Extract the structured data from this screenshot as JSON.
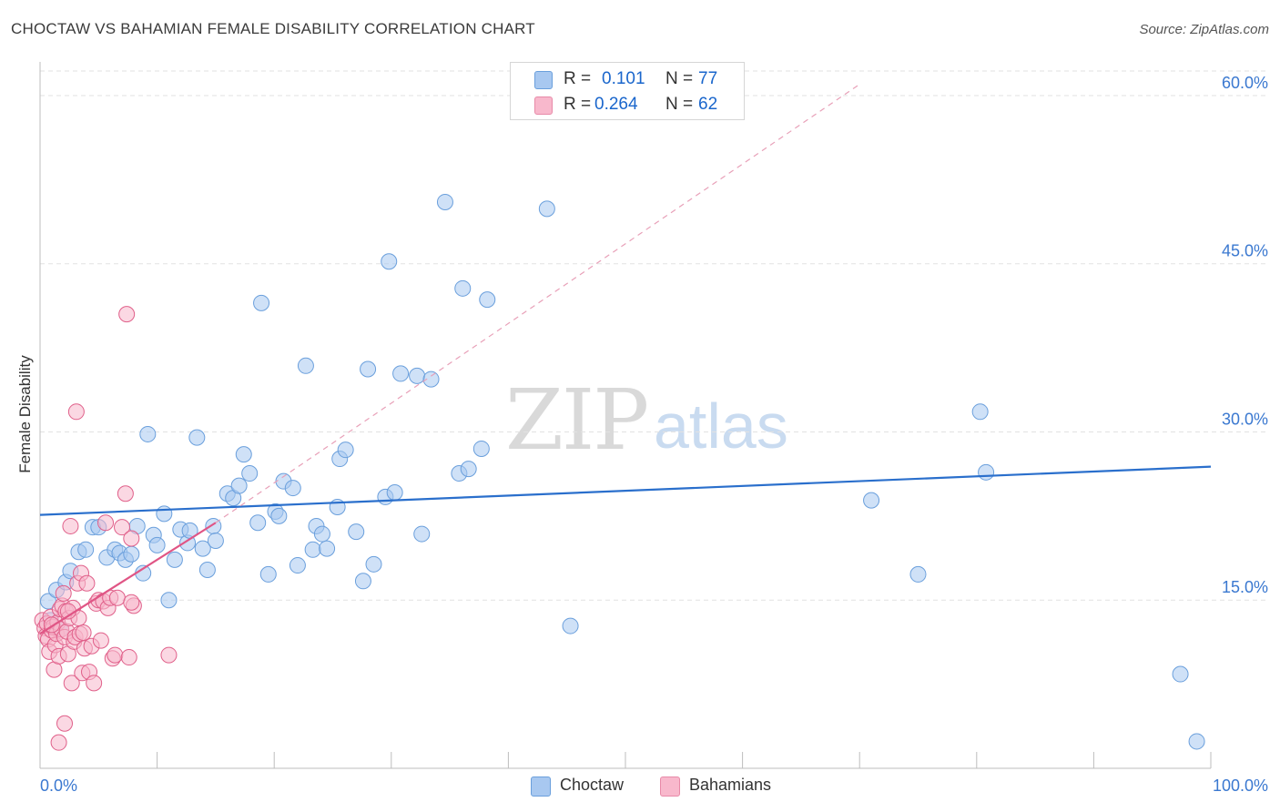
{
  "header": {
    "title": "CHOCTAW VS BAHAMIAN FEMALE DISABILITY CORRELATION CHART",
    "source": "Source: ZipAtlas.com"
  },
  "watermark": {
    "zip": "ZIP",
    "atlas": "atlas"
  },
  "legend": {
    "r_label": "R =",
    "n_label": "N =",
    "series": [
      {
        "name": "Choctaw",
        "r": "0.101",
        "n": "77",
        "fill": "#a8c8f0",
        "stroke": "#6a9fdc"
      },
      {
        "name": "Bahamians",
        "r": "0.264",
        "n": "62",
        "fill": "#f8b8cc",
        "stroke": "#e88aa8"
      }
    ]
  },
  "chart_data": {
    "type": "scatter",
    "title": "CHOCTAW VS BAHAMIAN FEMALE DISABILITY CORRELATION CHART",
    "xlabel": "",
    "ylabel": "Female Disability",
    "xlim": [
      0,
      100
    ],
    "ylim": [
      0,
      63
    ],
    "x_tick_labels": [
      "0.0%",
      "100.0%"
    ],
    "y_ticks": [
      15,
      30,
      45,
      60
    ],
    "y_tick_labels": [
      "15.0%",
      "30.0%",
      "45.0%",
      "60.0%"
    ],
    "grid": true,
    "legend_position": "top-center",
    "series": [
      {
        "name": "Choctaw",
        "color": "#6a9fdc",
        "fill": "#a8c8f0",
        "points": [
          [
            0.7,
            14.9
          ],
          [
            1.4,
            15.9
          ],
          [
            2.2,
            16.6
          ],
          [
            2.6,
            17.6
          ],
          [
            3.3,
            19.3
          ],
          [
            3.9,
            19.5
          ],
          [
            4.5,
            21.5
          ],
          [
            5.0,
            21.5
          ],
          [
            5.7,
            18.8
          ],
          [
            6.4,
            19.5
          ],
          [
            6.8,
            19.2
          ],
          [
            7.3,
            18.6
          ],
          [
            7.8,
            19.1
          ],
          [
            8.3,
            21.6
          ],
          [
            8.8,
            17.4
          ],
          [
            9.2,
            29.8
          ],
          [
            9.7,
            20.8
          ],
          [
            10.0,
            19.9
          ],
          [
            10.6,
            22.7
          ],
          [
            11.0,
            15.0
          ],
          [
            11.5,
            18.6
          ],
          [
            12.0,
            21.3
          ],
          [
            12.6,
            20.1
          ],
          [
            12.8,
            21.2
          ],
          [
            13.4,
            29.5
          ],
          [
            13.9,
            19.6
          ],
          [
            14.3,
            17.7
          ],
          [
            14.8,
            21.6
          ],
          [
            15.0,
            20.3
          ],
          [
            16.0,
            24.5
          ],
          [
            16.5,
            24.1
          ],
          [
            17.0,
            25.2
          ],
          [
            17.4,
            28.0
          ],
          [
            17.9,
            26.3
          ],
          [
            18.6,
            21.9
          ],
          [
            18.9,
            41.5
          ],
          [
            19.5,
            17.3
          ],
          [
            20.1,
            22.9
          ],
          [
            20.4,
            22.5
          ],
          [
            20.8,
            25.6
          ],
          [
            21.6,
            25.0
          ],
          [
            22.0,
            18.1
          ],
          [
            22.7,
            35.9
          ],
          [
            23.3,
            19.5
          ],
          [
            23.6,
            21.6
          ],
          [
            24.1,
            20.9
          ],
          [
            24.5,
            19.6
          ],
          [
            25.6,
            27.6
          ],
          [
            26.1,
            28.4
          ],
          [
            27.0,
            21.1
          ],
          [
            27.6,
            16.7
          ],
          [
            28.0,
            35.6
          ],
          [
            28.5,
            18.2
          ],
          [
            29.5,
            24.2
          ],
          [
            29.8,
            45.2
          ],
          [
            30.3,
            24.6
          ],
          [
            30.8,
            35.2
          ],
          [
            32.2,
            35.0
          ],
          [
            32.6,
            20.9
          ],
          [
            33.4,
            34.7
          ],
          [
            34.6,
            50.5
          ],
          [
            35.8,
            26.3
          ],
          [
            36.1,
            42.8
          ],
          [
            36.6,
            26.7
          ],
          [
            37.7,
            28.5
          ],
          [
            38.2,
            41.8
          ],
          [
            43.3,
            49.9
          ],
          [
            45.3,
            12.7
          ],
          [
            71.0,
            23.9
          ],
          [
            75.0,
            17.3
          ],
          [
            80.3,
            31.8
          ],
          [
            80.8,
            26.4
          ],
          [
            97.4,
            8.4
          ],
          [
            98.8,
            2.4
          ],
          [
            0.9,
            13.2
          ],
          [
            1.8,
            12.4
          ],
          [
            25.4,
            23.3
          ]
        ]
      },
      {
        "name": "Bahamians",
        "color": "#e0608a",
        "fill": "#f8b8cc",
        "points": [
          [
            0.2,
            13.2
          ],
          [
            0.4,
            12.5
          ],
          [
            0.5,
            11.8
          ],
          [
            0.6,
            12.9
          ],
          [
            0.7,
            11.5
          ],
          [
            0.8,
            10.4
          ],
          [
            0.9,
            13.5
          ],
          [
            1.0,
            12.3
          ],
          [
            1.1,
            12.6
          ],
          [
            1.2,
            8.8
          ],
          [
            1.3,
            11.0
          ],
          [
            1.4,
            12.0
          ],
          [
            1.5,
            13.0
          ],
          [
            1.6,
            10.0
          ],
          [
            1.7,
            14.2
          ],
          [
            1.8,
            12.4
          ],
          [
            1.9,
            14.5
          ],
          [
            2.0,
            15.6
          ],
          [
            2.1,
            11.7
          ],
          [
            2.2,
            14.0
          ],
          [
            2.3,
            12.2
          ],
          [
            2.4,
            10.2
          ],
          [
            2.5,
            13.4
          ],
          [
            2.6,
            21.6
          ],
          [
            2.7,
            7.6
          ],
          [
            2.8,
            14.3
          ],
          [
            2.9,
            11.3
          ],
          [
            3.0,
            11.7
          ],
          [
            3.1,
            31.8
          ],
          [
            3.2,
            16.5
          ],
          [
            3.3,
            13.4
          ],
          [
            3.4,
            12.0
          ],
          [
            3.5,
            17.4
          ],
          [
            3.6,
            8.5
          ],
          [
            3.7,
            12.1
          ],
          [
            3.8,
            10.7
          ],
          [
            4.0,
            16.5
          ],
          [
            4.2,
            8.6
          ],
          [
            4.4,
            10.9
          ],
          [
            4.6,
            7.6
          ],
          [
            4.8,
            14.7
          ],
          [
            5.0,
            15.0
          ],
          [
            5.2,
            11.4
          ],
          [
            5.4,
            14.9
          ],
          [
            5.6,
            21.9
          ],
          [
            5.8,
            14.3
          ],
          [
            6.0,
            15.2
          ],
          [
            6.2,
            9.8
          ],
          [
            6.4,
            10.1
          ],
          [
            6.6,
            15.2
          ],
          [
            7.0,
            21.5
          ],
          [
            7.3,
            24.5
          ],
          [
            7.8,
            20.5
          ],
          [
            8.0,
            14.5
          ],
          [
            2.1,
            4.0
          ],
          [
            1.6,
            2.3
          ],
          [
            7.4,
            40.5
          ],
          [
            7.6,
            9.9
          ],
          [
            7.8,
            14.8
          ],
          [
            11.0,
            10.1
          ],
          [
            1.0,
            12.8
          ],
          [
            2.4,
            14.0
          ]
        ]
      }
    ],
    "trend_lines": [
      {
        "series": "Choctaw",
        "style": "solid",
        "from": [
          0,
          22.6
        ],
        "to": [
          100,
          26.9
        ]
      },
      {
        "series": "Bahamians",
        "style": "solid",
        "from": [
          0,
          12.0
        ],
        "to": [
          15,
          21.9
        ]
      },
      {
        "series": "Bahamians",
        "style": "dashed",
        "from": [
          15,
          21.9
        ],
        "to": [
          70,
          61.0
        ]
      }
    ]
  }
}
